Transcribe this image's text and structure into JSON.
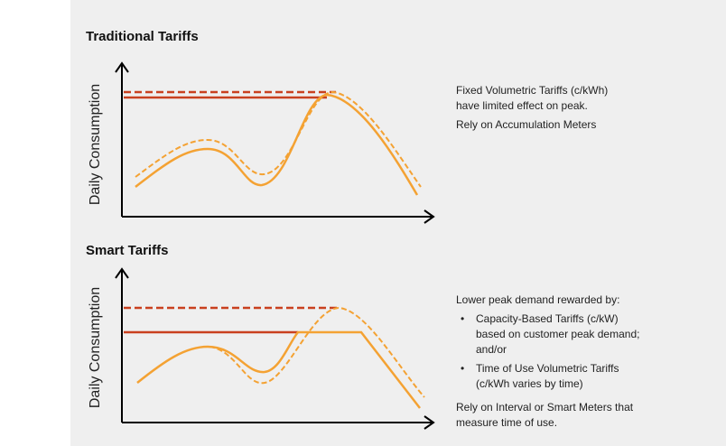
{
  "panels": [
    {
      "title": "Traditional Tariffs",
      "y_axis_label": "Daily Consumption",
      "description": [
        "Fixed Volumetric Tariffs (c/kWh)",
        "have limited effect on peak.",
        "Rely on Accumulation Meters"
      ]
    },
    {
      "title": "Smart Tariffs",
      "y_axis_label": "Daily Consumption",
      "intro": "Lower peak demand rewarded by:",
      "bullets": [
        [
          "Capacity-Based Tariffs (c/kW)",
          "based on customer peak demand;",
          "and/or"
        ],
        [
          "Time of Use Volumetric Tariffs",
          "(c/kWh varies by time)"
        ]
      ],
      "footer": [
        "Rely on Interval or Smart Meters that",
        "measure time of use."
      ]
    }
  ]
}
